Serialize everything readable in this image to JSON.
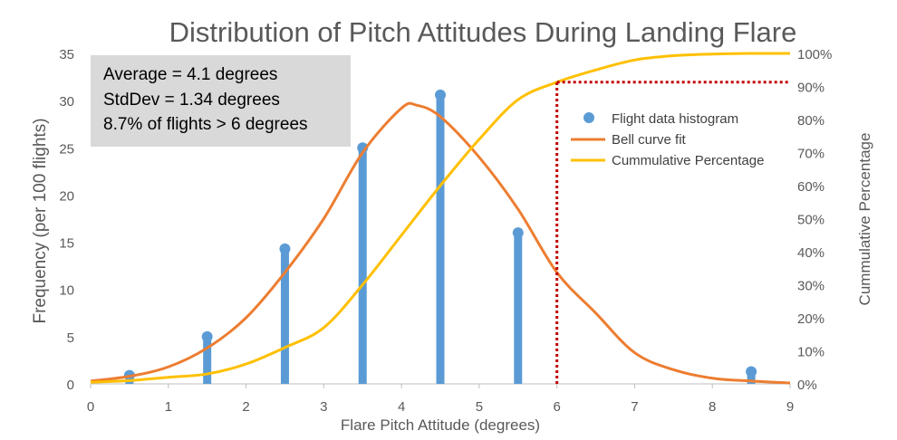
{
  "chart_data": {
    "type": "combo",
    "title": "Distribution of Pitch Attitudes During Landing Flare",
    "xlabel": "Flare Pitch Attitude (degrees)",
    "ylabel": "Frequency (per 100 flights)",
    "y2label": "Cummulative Percentage",
    "xlim": [
      0,
      9
    ],
    "ylim": [
      0,
      35
    ],
    "y2lim": [
      0,
      100
    ],
    "x_ticks": [
      "0",
      "1",
      "2",
      "3",
      "4",
      "5",
      "6",
      "7",
      "8",
      "9"
    ],
    "y_ticks": [
      "0",
      "5",
      "10",
      "15",
      "20",
      "25",
      "30",
      "35"
    ],
    "y2_ticks": [
      "0%",
      "10%",
      "20%",
      "30%",
      "40%",
      "50%",
      "60%",
      "70%",
      "80%",
      "90%",
      "100%"
    ],
    "stats_box": [
      "Average = 4.1 degrees",
      "StdDev = 1.34 degrees",
      "8.7% of flights > 6 degrees"
    ],
    "legend": [
      {
        "label": "Flight data histogram",
        "marker": "dot"
      },
      {
        "label": "Bell curve fit",
        "marker": "line"
      },
      {
        "label": "Cummulative Percentage",
        "marker": "line"
      }
    ],
    "series": [
      {
        "name": "Flight data histogram",
        "kind": "stem",
        "x": [
          0.5,
          1.5,
          2.5,
          3.5,
          4.5,
          5.5,
          8.5
        ],
        "values": [
          0.9,
          5.0,
          14.3,
          25.0,
          30.6,
          16.0,
          1.3
        ]
      },
      {
        "name": "Bell curve fit",
        "kind": "line",
        "x": [
          0,
          0.5,
          1,
          1.5,
          2,
          2.5,
          3,
          3.5,
          4,
          4.2,
          4.5,
          5,
          5.5,
          6,
          6.5,
          7,
          7.5,
          8,
          8.5,
          9
        ],
        "values": [
          0.3,
          0.8,
          1.8,
          3.8,
          7.0,
          11.8,
          17.5,
          24.5,
          29.2,
          29.5,
          28.3,
          24.0,
          18.5,
          11.8,
          7.5,
          3.3,
          1.5,
          0.6,
          0.3,
          0.1
        ]
      },
      {
        "name": "Cummulative Percentage",
        "kind": "line",
        "axis": "right",
        "x": [
          0,
          0.5,
          1,
          1.5,
          2,
          2.5,
          3,
          3.5,
          4,
          4.5,
          5,
          5.5,
          6,
          6.5,
          7,
          7.5,
          8,
          8.5,
          9
        ],
        "values": [
          0.5,
          1,
          2,
          3,
          6,
          11,
          17,
          30,
          45,
          60,
          74,
          86,
          91.3,
          95,
          98,
          99.3,
          99.8,
          100,
          100
        ]
      }
    ],
    "threshold_marker": {
      "x": 6,
      "percent": 91.3,
      "style": "dotted"
    },
    "colors": {
      "histogram": "#5b9bd5",
      "bell": "#ed7d31",
      "cumulative": "#ffc000",
      "threshold": "#c00000",
      "stats_box": "#d9d9d9"
    }
  }
}
